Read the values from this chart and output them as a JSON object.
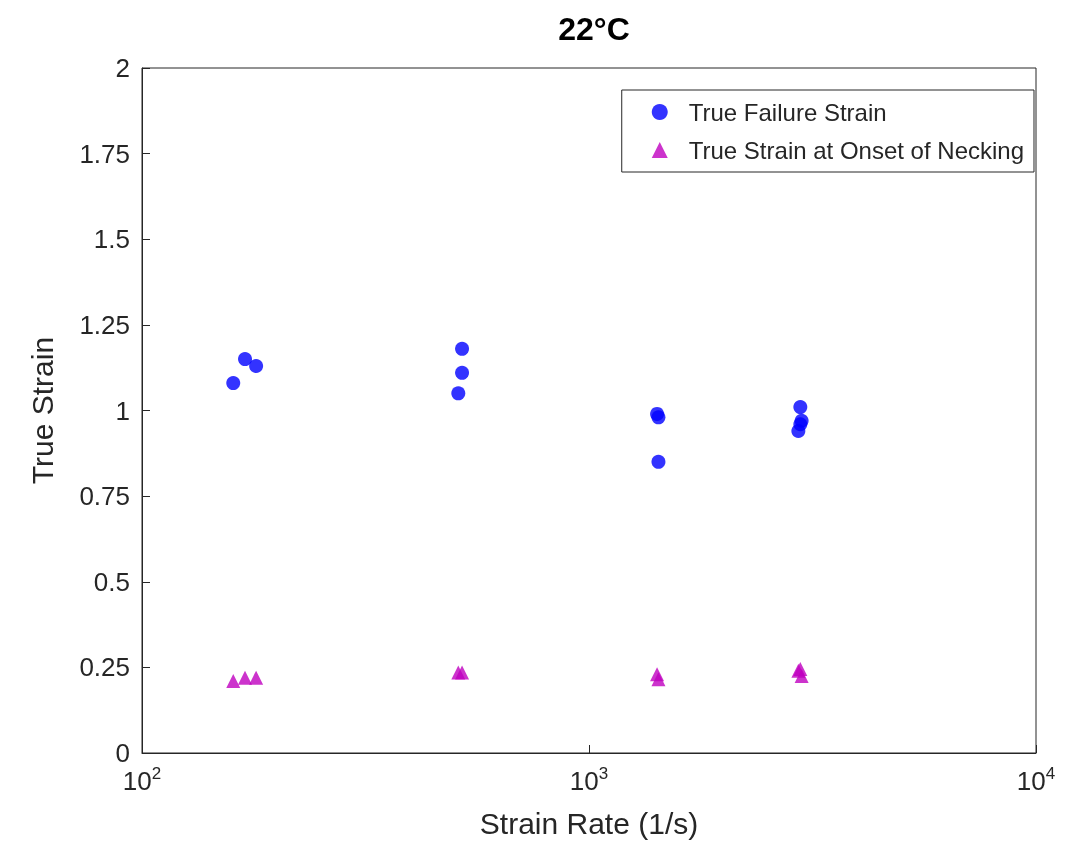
{
  "chart_data": {
    "type": "scatter",
    "title": "22°C",
    "xlabel": "Strain Rate (1/s)",
    "ylabel": "True Strain",
    "log": "x",
    "xlim": [
      100,
      10000
    ],
    "xticks": [
      {
        "value": 100,
        "label": "10$^{2}$"
      },
      {
        "value": 1000,
        "label": "10$^{3}$"
      },
      {
        "value": 10000,
        "label": "10$^{4}$"
      }
    ],
    "ylim": [
      0,
      2
    ],
    "yticks": [
      0,
      0.25,
      0.5,
      0.75,
      1,
      1.25,
      1.5,
      1.75,
      2
    ],
    "grid": false,
    "legend": "top right",
    "series": [
      {
        "name": "True Failure Strain",
        "color": "#0000ff",
        "marker": "circle",
        "x": [
          160,
          170,
          180,
          510,
          520,
          520,
          1420,
          1430,
          1430,
          2970,
          2990,
          2970,
          2940
        ],
        "values": [
          1.08,
          1.15,
          1.13,
          1.05,
          1.18,
          1.11,
          0.99,
          0.98,
          0.85,
          1.01,
          0.97,
          0.96,
          0.94
        ]
      },
      {
        "name": "True Strain at Onset of Necking",
        "color": "#bf00bf",
        "marker": "triangle",
        "x": [
          160,
          170,
          180,
          510,
          520,
          1420,
          1430,
          2970,
          2990,
          2940
        ],
        "values": [
          0.21,
          0.22,
          0.22,
          0.235,
          0.235,
          0.23,
          0.215,
          0.245,
          0.225,
          0.24
        ]
      }
    ]
  }
}
